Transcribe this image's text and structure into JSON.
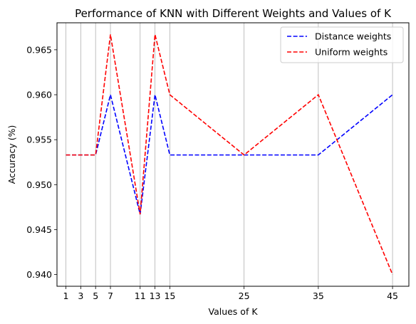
{
  "chart_data": {
    "type": "line",
    "title": "Performance of KNN with Different Weights and Values of K",
    "xlabel": "Values of K",
    "ylabel": "Accuracy (%)",
    "x": [
      1,
      3,
      5,
      7,
      11,
      13,
      15,
      25,
      35,
      45
    ],
    "x_tick_labels": [
      "1",
      "3",
      "5",
      "7",
      "11",
      "13",
      "15",
      "25",
      "35",
      "45"
    ],
    "y_tick_values": [
      0.94,
      0.945,
      0.95,
      0.955,
      0.96,
      0.965
    ],
    "y_tick_labels": [
      "0.940",
      "0.945",
      "0.950",
      "0.955",
      "0.960",
      "0.965"
    ],
    "xlim": [
      -0.2,
      47.2
    ],
    "ylim": [
      0.9387,
      0.968
    ],
    "grid": "vertical at x ticks",
    "legend_position": "top-right",
    "series": [
      {
        "name": "Distance weights",
        "color": "#0000ff",
        "line_style": "dashed",
        "values": [
          0.9533,
          0.9533,
          0.9533,
          0.96,
          0.9467,
          0.96,
          0.9533,
          0.9533,
          0.9533,
          0.96
        ]
      },
      {
        "name": "Uniform weights",
        "color": "#ff0000",
        "line_style": "dashed",
        "values": [
          0.9533,
          0.9533,
          0.9533,
          0.9667,
          0.9467,
          0.9667,
          0.96,
          0.9533,
          0.96,
          0.94
        ]
      }
    ]
  }
}
